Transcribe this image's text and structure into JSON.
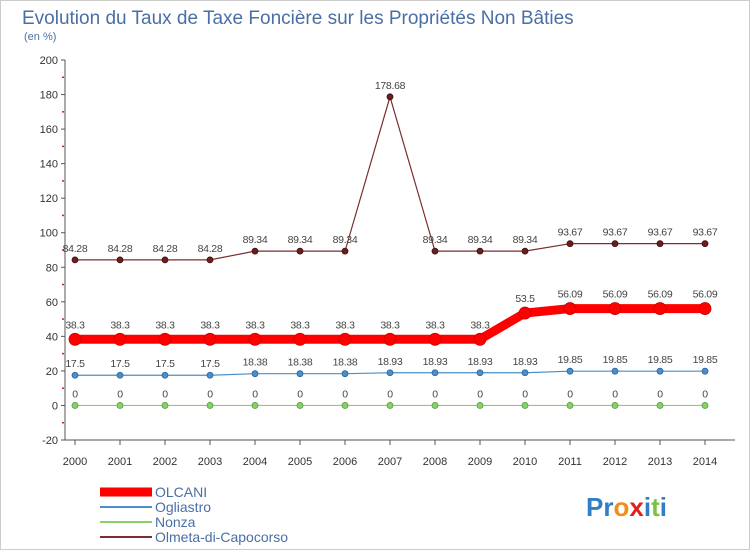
{
  "chart_data": {
    "type": "line",
    "title": "Evolution du Taux de Taxe Foncière sur les Propriétés Non Bâties",
    "subtitle": "(en %)",
    "categories": [
      "2000",
      "2001",
      "2002",
      "2003",
      "2004",
      "2005",
      "2006",
      "2007",
      "2008",
      "2009",
      "2010",
      "2011",
      "2012",
      "2013",
      "2014"
    ],
    "yticks": [
      "-20",
      "0",
      "20",
      "40",
      "60",
      "80",
      "100",
      "120",
      "140",
      "160",
      "180",
      "200"
    ],
    "ylim": [
      -20,
      200
    ],
    "series": [
      {
        "name": "Olmeta-di-Capocorso",
        "color": "#7a2e2e",
        "values": [
          84.28,
          84.28,
          84.28,
          84.28,
          89.34,
          89.34,
          89.34,
          178.68,
          89.34,
          89.34,
          89.34,
          93.67,
          93.67,
          93.67,
          93.67
        ],
        "labels": [
          "84.28",
          "84.28",
          "84.28",
          "84.28",
          "89.34",
          "89.34",
          "89.34",
          "178.68",
          "89.34",
          "89.34",
          "89.34",
          "93.67",
          "93.67",
          "93.67",
          "93.67"
        ]
      },
      {
        "name": "OLCANI",
        "color": "#ff0000",
        "values": [
          38.3,
          38.3,
          38.3,
          38.3,
          38.3,
          38.3,
          38.3,
          38.3,
          38.3,
          38.3,
          53.5,
          56.09,
          56.09,
          56.09,
          56.09
        ],
        "labels": [
          "38.3",
          "38.3",
          "38.3",
          "38.3",
          "38.3",
          "38.3",
          "38.3",
          "38.3",
          "38.3",
          "38.3",
          "53.5",
          "56.09",
          "56.09",
          "56.09",
          "56.09"
        ]
      },
      {
        "name": "Ogliastro",
        "color": "#4a90c8",
        "values": [
          17.5,
          17.5,
          17.5,
          17.5,
          18.38,
          18.38,
          18.38,
          18.93,
          18.93,
          18.93,
          18.93,
          19.85,
          19.85,
          19.85,
          19.85
        ],
        "labels": [
          "17.5",
          "17.5",
          "17.5",
          "17.5",
          "18.38",
          "18.38",
          "18.38",
          "18.93",
          "18.93",
          "18.93",
          "18.93",
          "19.85",
          "19.85",
          "19.85",
          "19.85"
        ]
      },
      {
        "name": "Nonza",
        "color": "#88d068",
        "values": [
          0,
          0,
          0,
          0,
          0,
          0,
          0,
          0,
          0,
          0,
          0,
          0,
          0,
          0,
          0
        ],
        "labels": [
          "0",
          "0",
          "0",
          "0",
          "0",
          "0",
          "0",
          "0",
          "0",
          "0",
          "0",
          "0",
          "0",
          "0",
          "0"
        ]
      }
    ],
    "legend": [
      "OLCANI",
      "Ogliastro",
      "Nonza",
      "Olmeta-di-Capocorso"
    ],
    "legend_position": "bottom-left",
    "grid": false
  },
  "brand": {
    "text": "Proxiti",
    "letters": [
      "P",
      "r",
      "o",
      "x",
      "i",
      "t",
      "i"
    ],
    "colors": [
      "#2f7fc8",
      "#2f7fc8",
      "#f28c1c",
      "#e02020",
      "#2f7fc8",
      "#7cc242",
      "#2f7fc8"
    ]
  }
}
